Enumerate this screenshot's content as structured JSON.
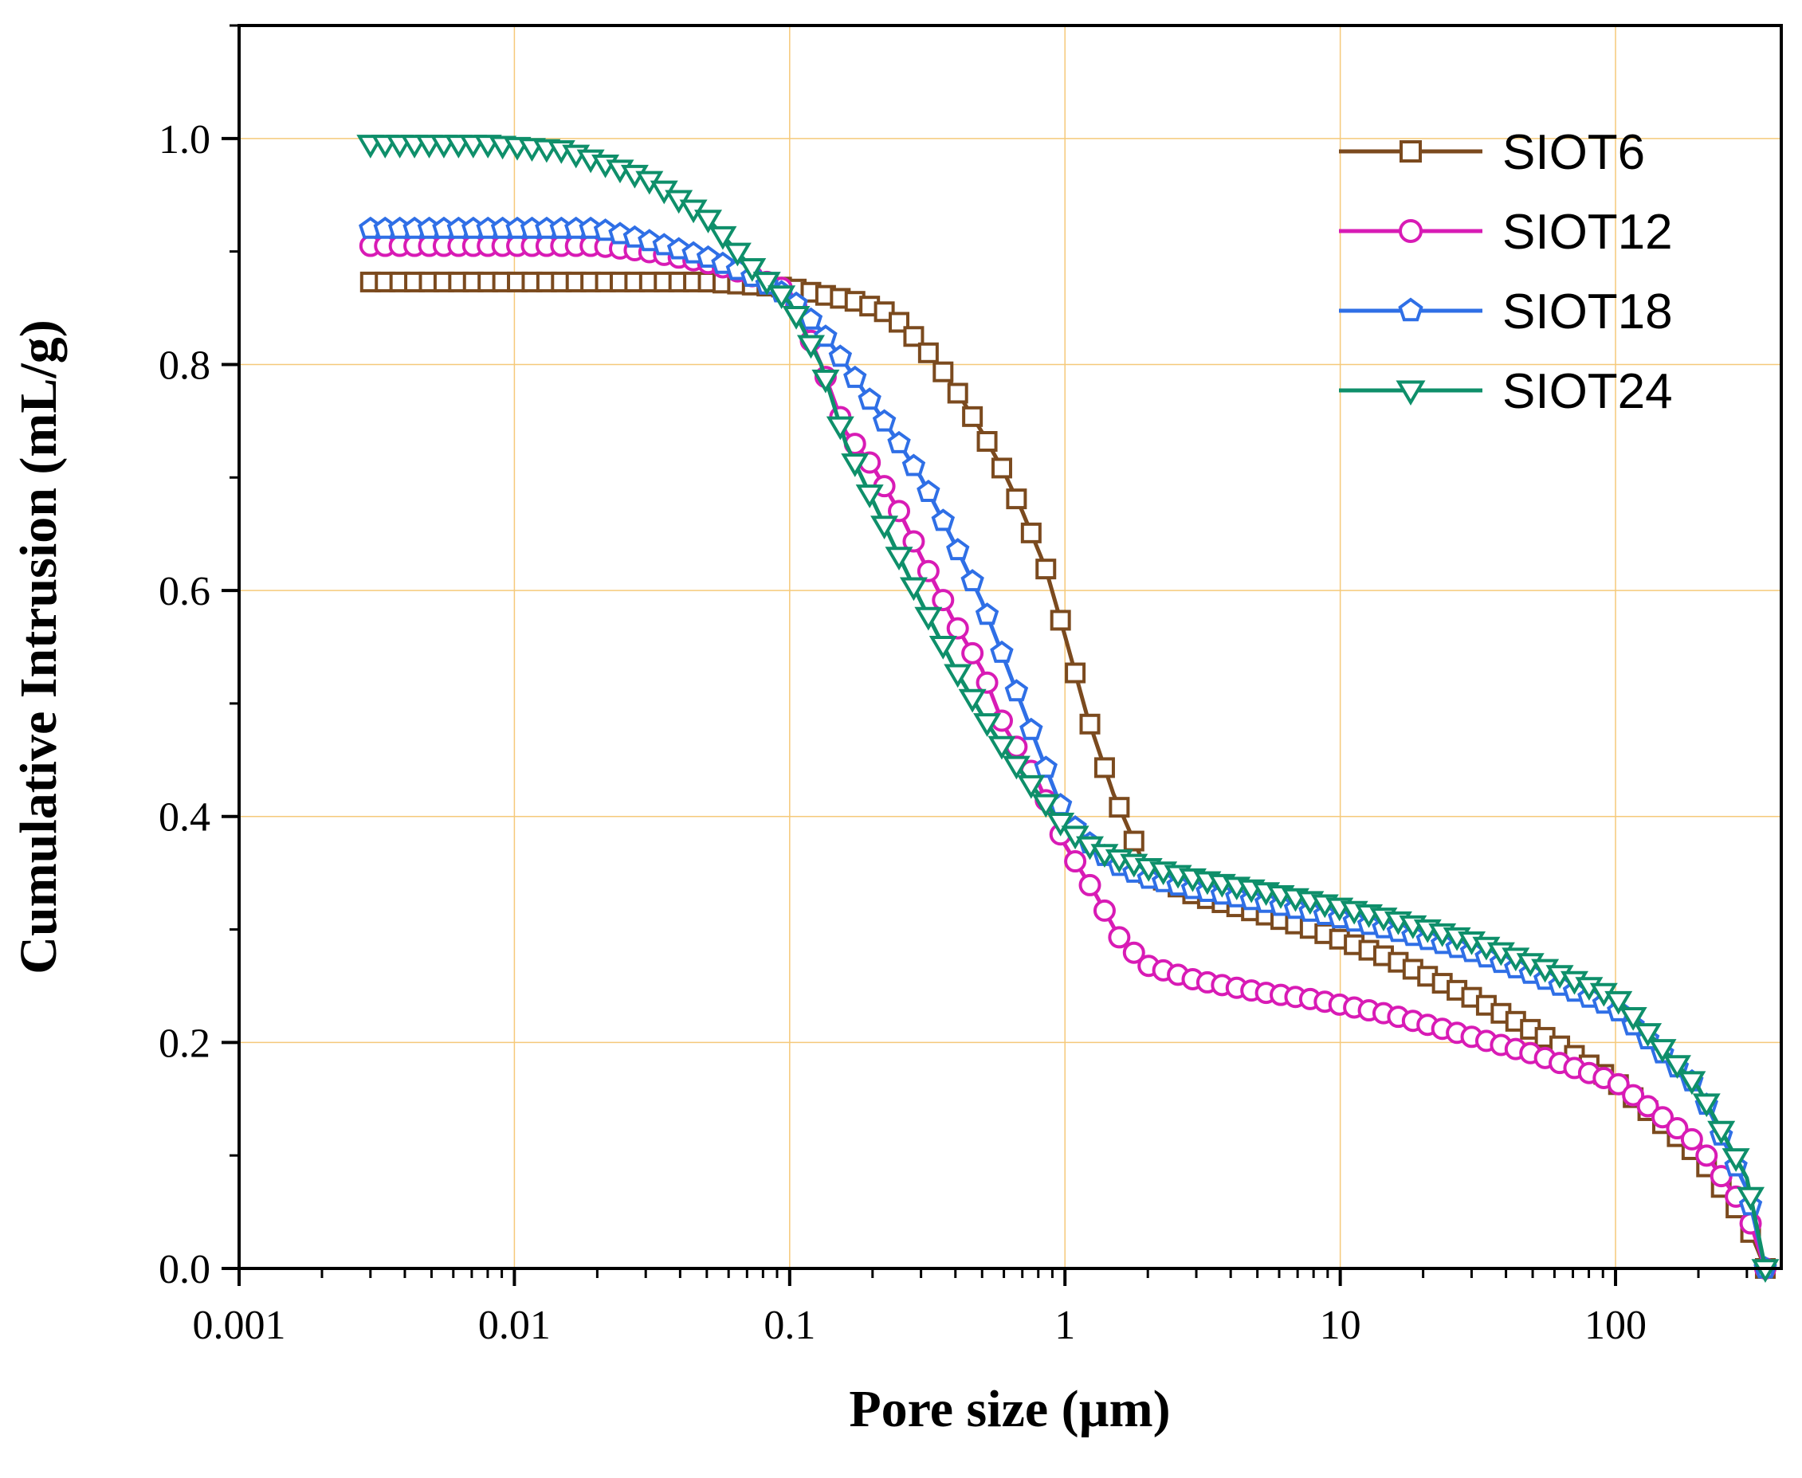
{
  "chart_data": {
    "type": "line",
    "title": "",
    "xlabel": "Pore size (µm)",
    "ylabel": "Cumulative Intrusion (mL/g)",
    "xscale": "log",
    "xlim": [
      0.001,
      400
    ],
    "ylim": [
      0.0,
      1.1
    ],
    "grid": true,
    "legend_position": "top-right",
    "x_tick_labels": [
      "0.001",
      "0.01",
      "0.1",
      "1",
      "10",
      "100"
    ],
    "y_tick_labels": [
      "0.0",
      "0.2",
      "0.4",
      "0.6",
      "0.8",
      "1.0"
    ],
    "series": [
      {
        "name": "SIOT6",
        "color": "#7B4A1E",
        "marker": "square",
        "x": [
          0.003,
          0.01,
          0.02,
          0.05,
          0.1,
          0.13,
          0.18,
          0.23,
          0.27,
          0.32,
          0.37,
          0.42,
          0.5,
          0.6,
          0.7,
          0.85,
          1.0,
          1.2,
          1.5,
          2.0,
          3.0,
          5.0,
          8.0,
          15.0,
          30.0,
          60.0,
          100.0,
          200.0,
          300.0,
          350.0
        ],
        "y": [
          0.873,
          0.873,
          0.873,
          0.873,
          0.868,
          0.862,
          0.855,
          0.845,
          0.83,
          0.81,
          0.79,
          0.77,
          0.74,
          0.705,
          0.67,
          0.62,
          0.56,
          0.49,
          0.42,
          0.35,
          0.33,
          0.315,
          0.3,
          0.275,
          0.24,
          0.2,
          0.165,
          0.1,
          0.04,
          0.0
        ]
      },
      {
        "name": "SIOT12",
        "color": "#D81BB5",
        "marker": "circle",
        "x": [
          0.003,
          0.01,
          0.02,
          0.03,
          0.05,
          0.07,
          0.1,
          0.13,
          0.16,
          0.2,
          0.25,
          0.3,
          0.4,
          0.5,
          0.6,
          0.8,
          1.0,
          1.3,
          1.6,
          2.0,
          3.0,
          5.0,
          8.0,
          15.0,
          30.0,
          50.0,
          100.0,
          200.0,
          300.0,
          350.0
        ],
        "y": [
          0.905,
          0.905,
          0.905,
          0.9,
          0.89,
          0.88,
          0.865,
          0.8,
          0.74,
          0.71,
          0.67,
          0.63,
          0.57,
          0.53,
          0.48,
          0.43,
          0.375,
          0.33,
          0.29,
          0.268,
          0.255,
          0.245,
          0.238,
          0.225,
          0.205,
          0.19,
          0.165,
          0.11,
          0.05,
          0.0
        ]
      },
      {
        "name": "SIOT18",
        "color": "#2F6FE6",
        "marker": "pentagon",
        "x": [
          0.003,
          0.01,
          0.02,
          0.03,
          0.05,
          0.07,
          0.1,
          0.13,
          0.16,
          0.2,
          0.25,
          0.3,
          0.4,
          0.5,
          0.6,
          0.8,
          1.0,
          1.3,
          1.6,
          2.0,
          3.0,
          5.0,
          8.0,
          15.0,
          30.0,
          50.0,
          100.0,
          200.0,
          300.0,
          350.0
        ],
        "y": [
          0.92,
          0.92,
          0.92,
          0.91,
          0.895,
          0.88,
          0.86,
          0.83,
          0.8,
          0.765,
          0.73,
          0.7,
          0.64,
          0.59,
          0.54,
          0.46,
          0.4,
          0.37,
          0.355,
          0.345,
          0.335,
          0.325,
          0.315,
          0.3,
          0.28,
          0.26,
          0.23,
          0.16,
          0.07,
          0.0
        ]
      },
      {
        "name": "SIOT24",
        "color": "#0E8F6A",
        "marker": "triangle-down",
        "x": [
          0.003,
          0.008,
          0.015,
          0.02,
          0.03,
          0.05,
          0.07,
          0.1,
          0.13,
          0.16,
          0.2,
          0.25,
          0.3,
          0.4,
          0.5,
          0.6,
          0.8,
          1.0,
          1.3,
          1.6,
          2.0,
          3.0,
          5.0,
          8.0,
          15.0,
          30.0,
          50.0,
          100.0,
          200.0,
          300.0,
          350.0
        ],
        "y": [
          0.995,
          0.995,
          0.99,
          0.98,
          0.965,
          0.93,
          0.89,
          0.855,
          0.8,
          0.73,
          0.68,
          0.63,
          0.59,
          0.53,
          0.49,
          0.46,
          0.42,
          0.39,
          0.37,
          0.362,
          0.355,
          0.345,
          0.335,
          0.325,
          0.31,
          0.29,
          0.27,
          0.24,
          0.16,
          0.08,
          0.0
        ]
      }
    ]
  }
}
